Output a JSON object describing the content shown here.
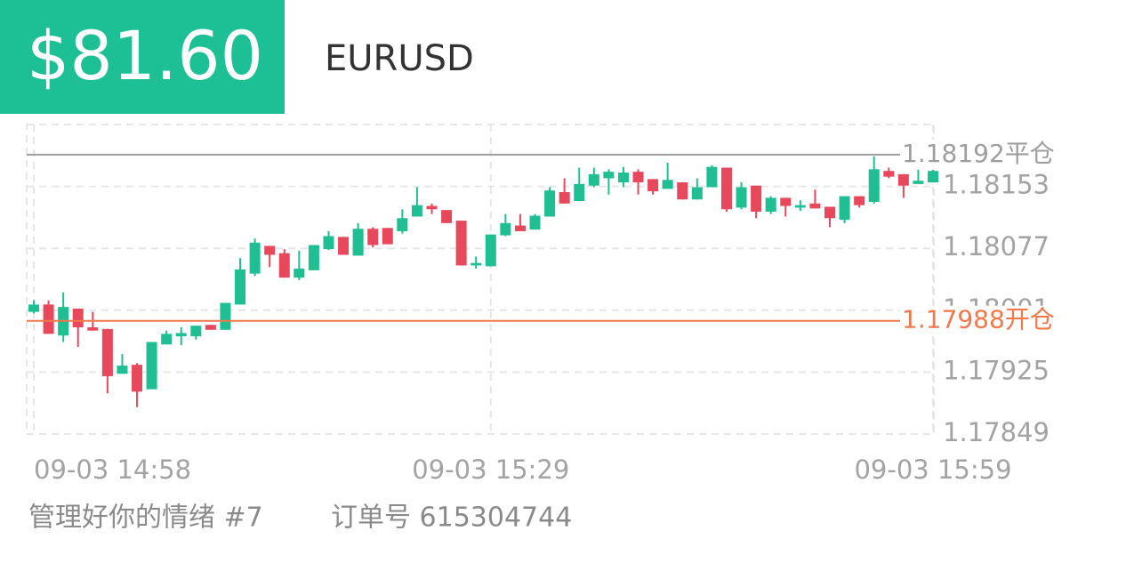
{
  "header": {
    "price": "$81.60",
    "symbol": "EURUSD"
  },
  "chart_data": {
    "type": "candlestick",
    "categories": [
      "09-03 14:58",
      null,
      null,
      null,
      null,
      null,
      null,
      null,
      null,
      null,
      null,
      null,
      null,
      null,
      null,
      null,
      null,
      null,
      null,
      null,
      null,
      null,
      null,
      null,
      null,
      null,
      null,
      null,
      null,
      null,
      null,
      "09-03 15:29",
      null,
      null,
      null,
      null,
      null,
      null,
      null,
      null,
      null,
      null,
      null,
      null,
      null,
      null,
      null,
      null,
      null,
      null,
      null,
      null,
      null,
      null,
      null,
      null,
      null,
      null,
      null,
      null,
      null,
      "09-03 15:59"
    ],
    "open": [
      1.17999,
      1.18008,
      1.1797,
      1.18003,
      1.1798,
      1.17978,
      1.17923,
      1.17934,
      1.17904,
      1.17959,
      1.17969,
      1.17969,
      1.17983,
      1.17977,
      1.18008,
      1.18046,
      1.1808,
      1.18071,
      1.18041,
      1.1805,
      1.18076,
      1.18091,
      1.18068,
      1.18101,
      1.18102,
      1.18098,
      1.18116,
      1.18129,
      1.18124,
      1.18111,
      1.18056,
      1.18055,
      1.18093,
      1.18105,
      1.181,
      1.18116,
      1.18146,
      1.18135,
      1.18154,
      1.18163,
      1.18158,
      1.18171,
      1.18162,
      1.1815,
      1.18158,
      1.18137,
      1.18152,
      1.18176,
      1.18127,
      1.18154,
      1.18122,
      1.18139,
      1.18127,
      1.18132,
      1.18128,
      1.18112,
      1.18141,
      1.18134,
      1.18172,
      1.18168,
      1.18156,
      1.18158
    ],
    "high": [
      1.18013,
      1.18013,
      1.18023,
      1.18003,
      1.17999,
      1.17978,
      1.17947,
      1.17936,
      1.17962,
      1.17976,
      1.1798,
      1.17982,
      1.17983,
      1.1801,
      1.18065,
      1.18089,
      1.1808,
      1.18076,
      1.18074,
      1.18081,
      1.18098,
      1.18091,
      1.18108,
      1.18103,
      1.18102,
      1.18125,
      1.18152,
      1.18132,
      1.18124,
      1.18111,
      1.18067,
      1.18094,
      1.18119,
      1.18119,
      1.18119,
      1.18152,
      1.18163,
      1.18176,
      1.18176,
      1.18174,
      1.18177,
      1.18174,
      1.18162,
      1.18182,
      1.18158,
      1.18163,
      1.18179,
      1.18176,
      1.18158,
      1.18154,
      1.18141,
      1.18139,
      1.18136,
      1.18149,
      1.18128,
      1.18141,
      1.18141,
      1.1819,
      1.18176,
      1.18168,
      1.18177,
      1.18177
    ],
    "low": [
      1.17997,
      1.17972,
      1.17962,
      1.17956,
      1.17976,
      1.17899,
      1.17923,
      1.17882,
      1.17904,
      1.17959,
      1.17958,
      1.17965,
      1.17977,
      1.17977,
      1.18008,
      1.18043,
      1.18054,
      1.18041,
      1.18038,
      1.1805,
      1.18075,
      1.18069,
      1.18068,
      1.18078,
      1.18082,
      1.18095,
      1.18116,
      1.18119,
      1.18108,
      1.18056,
      1.18052,
      1.18055,
      1.18092,
      1.18098,
      1.181,
      1.18116,
      1.18132,
      1.18135,
      1.18152,
      1.18143,
      1.18152,
      1.18143,
      1.18143,
      1.1815,
      1.18137,
      1.18137,
      1.18152,
      1.18122,
      1.18125,
      1.18114,
      1.18119,
      1.18116,
      1.18123,
      1.18126,
      1.18103,
      1.18108,
      1.18127,
      1.18132,
      1.18163,
      1.18139,
      1.18156,
      1.18158
    ],
    "close": [
      1.18008,
      1.17972,
      1.18005,
      1.1798,
      1.17976,
      1.1792,
      1.17933,
      1.17901,
      1.17962,
      1.17972,
      1.17973,
      1.17982,
      1.17977,
      1.1801,
      1.18051,
      1.18084,
      1.18069,
      1.18041,
      1.18052,
      1.18081,
      1.18092,
      1.18069,
      1.18101,
      1.18081,
      1.18082,
      1.18114,
      1.1813,
      1.18125,
      1.18108,
      1.18056,
      1.18059,
      1.18094,
      1.18108,
      1.18098,
      1.18117,
      1.18148,
      1.18132,
      1.18156,
      1.18168,
      1.18171,
      1.1817,
      1.18158,
      1.18147,
      1.18161,
      1.18137,
      1.18152,
      1.18177,
      1.18125,
      1.18152,
      1.18122,
      1.18139,
      1.18129,
      1.1813,
      1.18126,
      1.18114,
      1.18141,
      1.1813,
      1.18174,
      1.18165,
      1.18154,
      1.1816,
      1.18172
    ],
    "up_color": "#1fbf93",
    "down_color": "#e8485c",
    "ylim": [
      1.17849,
      1.18229
    ],
    "yticks": [
      1.17849,
      1.17925,
      1.18001,
      1.18077,
      1.18153
    ],
    "grid": true,
    "lines": [
      {
        "value": 1.18192,
        "label": "1.18192平仓",
        "color": "#9e9e9e"
      },
      {
        "value": 1.17988,
        "label": "1.17988开仓",
        "color": "#f2784b"
      }
    ]
  },
  "footer": {
    "note": "管理好你的情绪 #7",
    "order": "订单号 615304744"
  }
}
